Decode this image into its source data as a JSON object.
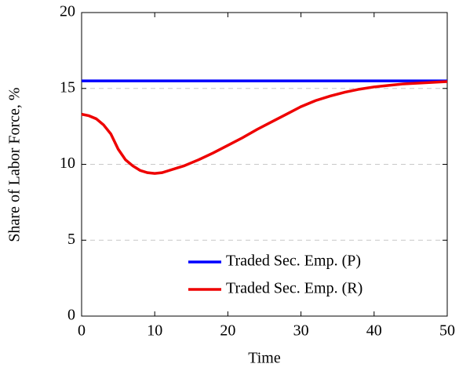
{
  "chart_data": {
    "type": "line",
    "xlabel": "Time",
    "ylabel": "Share of Labor Force, %",
    "x": [
      0,
      1,
      2,
      3,
      4,
      5,
      6,
      7,
      8,
      9,
      10,
      11,
      12,
      14,
      16,
      18,
      20,
      22,
      24,
      26,
      28,
      30,
      32,
      34,
      36,
      38,
      40,
      42,
      44,
      46,
      48,
      50
    ],
    "series": [
      {
        "name": "Traded Sec. Emp. (P)",
        "color": "#0000ff",
        "values": [
          15.5,
          15.5,
          15.5,
          15.5,
          15.5,
          15.5,
          15.5,
          15.5,
          15.5,
          15.5,
          15.5,
          15.5,
          15.5,
          15.5,
          15.5,
          15.5,
          15.5,
          15.5,
          15.5,
          15.5,
          15.5,
          15.5,
          15.5,
          15.5,
          15.5,
          15.5,
          15.5,
          15.5,
          15.5,
          15.5,
          15.5,
          15.5
        ]
      },
      {
        "name": "Traded Sec. Emp. (R)",
        "color": "#ee0000",
        "values": [
          13.3,
          13.2,
          13.0,
          12.6,
          12.0,
          11.0,
          10.3,
          9.9,
          9.6,
          9.45,
          9.4,
          9.45,
          9.6,
          9.9,
          10.3,
          10.75,
          11.25,
          11.75,
          12.3,
          12.8,
          13.3,
          13.8,
          14.2,
          14.5,
          14.75,
          14.95,
          15.1,
          15.2,
          15.3,
          15.35,
          15.4,
          15.45
        ]
      }
    ],
    "xlim": [
      0,
      50
    ],
    "xticks": [
      0,
      10,
      20,
      30,
      40,
      50
    ],
    "ylim": [
      0,
      20
    ],
    "yticks": [
      0,
      5,
      10,
      15,
      20
    ],
    "grid": true,
    "legend": "south east"
  }
}
